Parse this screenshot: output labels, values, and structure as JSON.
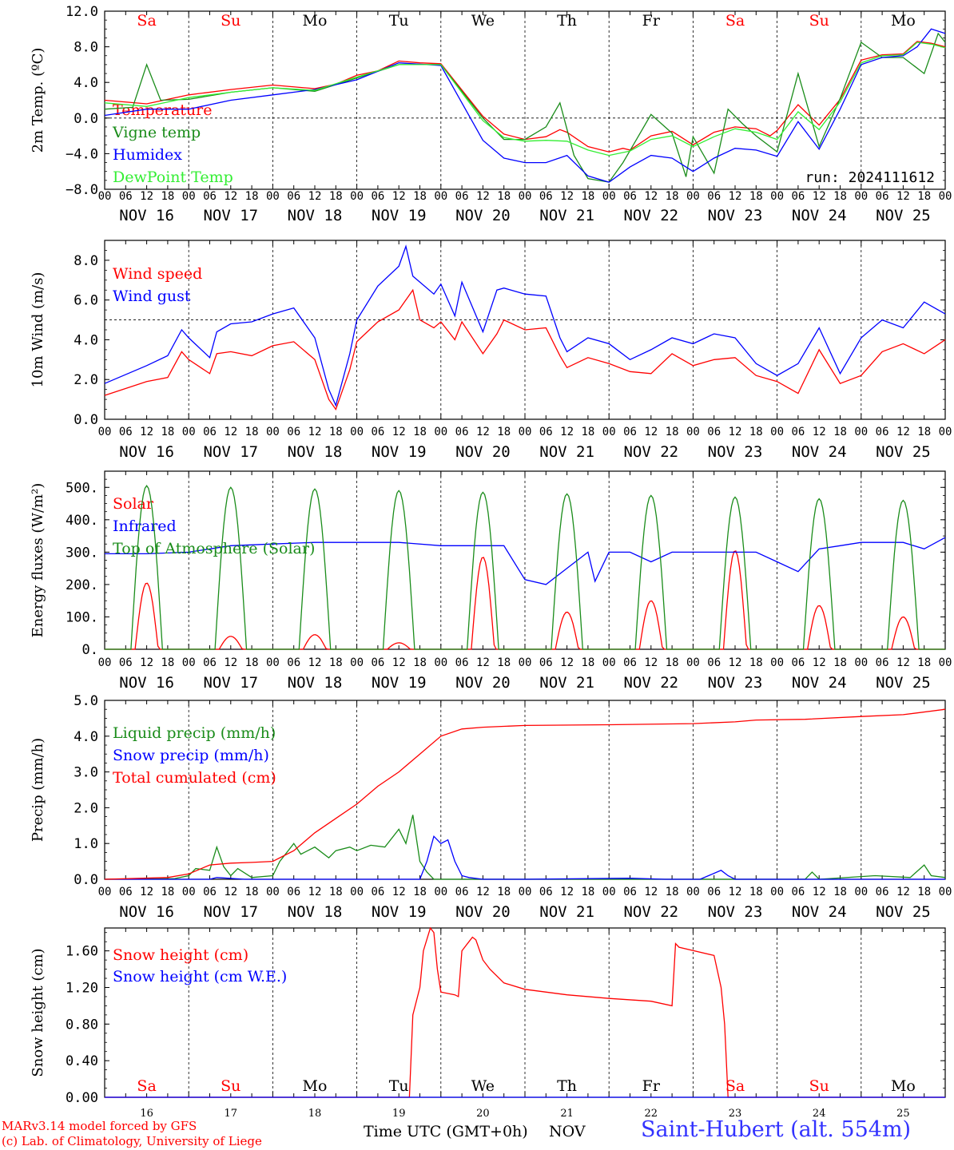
{
  "footer": {
    "model": "MARv3.14 model forced by GFS",
    "credit": "(c) Lab. of Climatology, University of Liege",
    "xaxis_title": "Time UTC (GMT+0h)",
    "xaxis_unit": "NOV",
    "station": "Saint-Hubert (alt. 554m)"
  },
  "colors": {
    "red": "#ff0000",
    "green": "#1a8c1a",
    "blue": "#0000ff",
    "lightgreen": "#33ee33"
  },
  "days": {
    "weekday_labels": [
      "Sa",
      "Su",
      "Mo",
      "Tu",
      "We",
      "Th",
      "Fr",
      "Sa",
      "Su",
      "Mo"
    ],
    "weekday_colors": [
      "red",
      "red",
      "black",
      "black",
      "black",
      "black",
      "black",
      "red",
      "red",
      "black"
    ],
    "date_labels": [
      "NOV 16",
      "NOV 17",
      "NOV 18",
      "NOV 19",
      "NOV 20",
      "NOV 21",
      "NOV 22",
      "NOV 23",
      "NOV 24",
      "NOV 25"
    ],
    "bottom_day_numbers": [
      "16",
      "17",
      "18",
      "19",
      "20",
      "21",
      "22",
      "23",
      "24",
      "25"
    ],
    "hour_ticks": [
      "00",
      "06",
      "12",
      "18"
    ],
    "final_tick": "00"
  },
  "chart_data": [
    {
      "type": "line",
      "id": "temperature",
      "ylabel": "2m Temp. (ºC)",
      "ylim": [
        -8,
        12
      ],
      "yticks": [
        "−8.0",
        "−4.0",
        "0.0",
        "4.0",
        "8.0",
        "12.0"
      ],
      "ytick_values": [
        -8,
        -4,
        0,
        4,
        8,
        12
      ],
      "hline": 0,
      "annotation": "run: 2024111612",
      "x_unit": "hours since 2024-11-16 00 UTC",
      "xlim": [
        0,
        240
      ],
      "series": [
        {
          "name": "Temperature",
          "color": "red",
          "x": [
            0,
            12,
            24,
            36,
            48,
            60,
            66,
            72,
            78,
            84,
            90,
            96,
            108,
            114,
            120,
            126,
            130,
            132,
            138,
            144,
            148,
            150,
            156,
            162,
            168,
            174,
            180,
            186,
            190,
            192,
            198,
            204,
            210,
            216,
            222,
            228,
            232,
            236,
            240
          ],
          "y": [
            2.0,
            1.6,
            2.6,
            3.2,
            3.7,
            3.3,
            3.8,
            4.8,
            5.3,
            6.4,
            6.2,
            6.1,
            0.2,
            -1.8,
            -2.4,
            -2.1,
            -1.3,
            -1.6,
            -3.2,
            -3.8,
            -3.4,
            -3.6,
            -2.0,
            -1.5,
            -3.0,
            -1.6,
            -1.0,
            -1.2,
            -2.0,
            -1.4,
            1.5,
            -0.8,
            2.1,
            6.5,
            7.1,
            7.2,
            8.6,
            8.4,
            8.0
          ]
        },
        {
          "name": "Vigne temp",
          "color": "green",
          "x": [
            0,
            8,
            12,
            16,
            24,
            36,
            48,
            60,
            72,
            84,
            96,
            108,
            114,
            120,
            126,
            130,
            134,
            138,
            144,
            148,
            152,
            156,
            162,
            166,
            168,
            174,
            178,
            182,
            186,
            192,
            198,
            204,
            210,
            216,
            222,
            228,
            234,
            238,
            240
          ],
          "y": [
            1.0,
            1.2,
            6.0,
            2.0,
            2.1,
            2.9,
            3.4,
            3.0,
            4.5,
            6.0,
            6.0,
            0.0,
            -2.4,
            -2.4,
            -1.0,
            1.7,
            -4.2,
            -6.8,
            -7.2,
            -5.0,
            -2.3,
            0.4,
            -1.7,
            -6.6,
            -2.1,
            -6.2,
            1.0,
            -0.6,
            -2.0,
            -3.8,
            5.0,
            -3.2,
            2.2,
            8.5,
            6.8,
            6.8,
            5.0,
            9.5,
            8.5
          ]
        },
        {
          "name": "Humidex",
          "color": "blue",
          "x": [
            0,
            12,
            24,
            36,
            48,
            60,
            72,
            84,
            96,
            108,
            114,
            120,
            126,
            132,
            138,
            144,
            150,
            156,
            162,
            168,
            174,
            180,
            186,
            192,
            198,
            204,
            210,
            216,
            222,
            228,
            232,
            236,
            240
          ],
          "y": [
            0.3,
            1.0,
            1.0,
            2.0,
            2.6,
            3.2,
            4.3,
            6.2,
            5.9,
            -2.5,
            -4.5,
            -5.0,
            -5.0,
            -4.2,
            -6.5,
            -7.2,
            -5.5,
            -4.2,
            -4.5,
            -6.0,
            -4.5,
            -3.4,
            -3.6,
            -4.3,
            -0.4,
            -3.5,
            1.0,
            6.0,
            6.8,
            7.0,
            8.0,
            10.0,
            9.5
          ]
        },
        {
          "name": "DewPoint Temp",
          "color": "lightgreen",
          "x": [
            0,
            12,
            24,
            36,
            48,
            60,
            72,
            84,
            96,
            108,
            114,
            120,
            126,
            132,
            138,
            144,
            150,
            156,
            162,
            168,
            174,
            180,
            186,
            192,
            198,
            204,
            210,
            216,
            222,
            228,
            232,
            236,
            240
          ],
          "y": [
            1.7,
            1.3,
            2.3,
            2.9,
            3.4,
            3.1,
            4.6,
            6.0,
            6.0,
            -0.3,
            -2.2,
            -2.6,
            -2.5,
            -2.6,
            -3.6,
            -4.2,
            -3.7,
            -2.4,
            -2.0,
            -3.2,
            -2.1,
            -1.2,
            -1.6,
            -2.4,
            0.7,
            -1.3,
            1.8,
            6.2,
            7.0,
            7.1,
            8.5,
            8.3,
            7.9
          ]
        }
      ]
    },
    {
      "type": "line",
      "id": "wind",
      "ylabel": "10m Wind (m/s)",
      "ylim": [
        0,
        9
      ],
      "yticks": [
        "0.0",
        "2.0",
        "4.0",
        "6.0",
        "8.0"
      ],
      "ytick_values": [
        0,
        2,
        4,
        6,
        8
      ],
      "hline": 5,
      "x_unit": "hours since 2024-11-16 00 UTC",
      "xlim": [
        0,
        240
      ],
      "series": [
        {
          "name": "Wind speed",
          "color": "red",
          "x": [
            0,
            12,
            18,
            22,
            24,
            30,
            32,
            36,
            42,
            48,
            54,
            60,
            64,
            66,
            70,
            72,
            78,
            84,
            88,
            90,
            94,
            96,
            100,
            102,
            108,
            112,
            114,
            120,
            126,
            130,
            132,
            138,
            144,
            150,
            156,
            162,
            168,
            174,
            180,
            186,
            192,
            198,
            204,
            210,
            216,
            222,
            228,
            234,
            240
          ],
          "y": [
            1.2,
            1.9,
            2.1,
            3.4,
            3.0,
            2.3,
            3.3,
            3.4,
            3.2,
            3.7,
            3.9,
            3.0,
            1.0,
            0.5,
            2.5,
            3.9,
            4.9,
            5.5,
            6.5,
            5.0,
            4.6,
            4.9,
            4.0,
            4.9,
            3.3,
            4.3,
            5.0,
            4.5,
            4.6,
            3.2,
            2.6,
            3.1,
            2.8,
            2.4,
            2.3,
            3.3,
            2.7,
            3.0,
            3.1,
            2.2,
            1.9,
            1.3,
            3.5,
            1.8,
            2.2,
            3.4,
            3.8,
            3.3,
            4.0
          ]
        },
        {
          "name": "Wind gust",
          "color": "blue",
          "x": [
            0,
            12,
            18,
            22,
            24,
            30,
            32,
            36,
            42,
            48,
            54,
            60,
            64,
            66,
            70,
            72,
            78,
            84,
            86,
            88,
            90,
            94,
            96,
            100,
            102,
            108,
            112,
            114,
            120,
            126,
            130,
            132,
            138,
            144,
            150,
            156,
            162,
            168,
            174,
            180,
            186,
            192,
            198,
            204,
            210,
            216,
            222,
            228,
            234,
            240
          ],
          "y": [
            1.8,
            2.7,
            3.2,
            4.5,
            4.1,
            3.1,
            4.4,
            4.8,
            4.9,
            5.3,
            5.6,
            4.1,
            1.5,
            0.7,
            3.3,
            5.0,
            6.7,
            7.7,
            8.7,
            7.2,
            6.9,
            6.3,
            6.8,
            5.2,
            6.9,
            4.4,
            6.5,
            6.6,
            6.3,
            6.2,
            4.1,
            3.4,
            4.1,
            3.8,
            3.0,
            3.5,
            4.1,
            3.8,
            4.3,
            4.1,
            2.8,
            2.2,
            2.8,
            4.6,
            2.3,
            4.1,
            5.0,
            4.6,
            5.9,
            5.3
          ]
        }
      ]
    },
    {
      "type": "line",
      "id": "energy",
      "ylabel": "Energy fluxes (W/m²)",
      "ylim": [
        0,
        550
      ],
      "yticks": [
        "0.",
        "100.",
        "200.",
        "300.",
        "400.",
        "500."
      ],
      "ytick_values": [
        0,
        100,
        200,
        300,
        400,
        500
      ],
      "x_unit": "hours since 2024-11-16 00 UTC",
      "xlim": [
        0,
        240
      ],
      "series": [
        {
          "name": "Solar",
          "color": "red",
          "peaks": [
            205,
            40,
            45,
            20,
            285,
            115,
            150,
            305,
            135,
            100
          ],
          "peak_hour": 12
        },
        {
          "name": "Infrared",
          "color": "blue",
          "x": [
            0,
            12,
            24,
            36,
            48,
            60,
            72,
            84,
            96,
            108,
            114,
            120,
            126,
            132,
            138,
            140,
            144,
            150,
            156,
            162,
            168,
            174,
            180,
            186,
            192,
            198,
            204,
            210,
            216,
            222,
            228,
            234,
            240
          ],
          "y": [
            295,
            295,
            300,
            320,
            325,
            330,
            330,
            330,
            320,
            320,
            320,
            215,
            200,
            250,
            300,
            210,
            300,
            300,
            270,
            300,
            300,
            300,
            300,
            300,
            270,
            240,
            310,
            320,
            330,
            330,
            330,
            310,
            345
          ]
        },
        {
          "name": "Top of Atmosphere (Solar)",
          "color": "green",
          "peaks": [
            505,
            500,
            495,
            490,
            485,
            480,
            475,
            470,
            465,
            460
          ],
          "peak_hour": 12
        }
      ]
    },
    {
      "type": "line",
      "id": "precip",
      "ylabel": "Precip (mm/h)",
      "ylim": [
        0,
        5
      ],
      "yticks": [
        "0.0",
        "1.0",
        "2.0",
        "3.0",
        "4.0",
        "5.0"
      ],
      "ytick_values": [
        0,
        1,
        2,
        3,
        4,
        5
      ],
      "x_unit": "hours since 2024-11-16 00 UTC",
      "xlim": [
        0,
        240
      ],
      "series": [
        {
          "name": "Liquid precip (mm/h)",
          "color": "green",
          "x": [
            0,
            20,
            24,
            26,
            30,
            32,
            34,
            36,
            38,
            42,
            48,
            50,
            54,
            56,
            60,
            64,
            66,
            70,
            72,
            76,
            80,
            84,
            86,
            88,
            90,
            92,
            94,
            96,
            98,
            100,
            102,
            108,
            120,
            160,
            180,
            200,
            202,
            204,
            220,
            230,
            234,
            236,
            240
          ],
          "y": [
            0,
            0.02,
            0.1,
            0.3,
            0.25,
            0.9,
            0.35,
            0.1,
            0.3,
            0.05,
            0.1,
            0.5,
            1.0,
            0.7,
            0.9,
            0.6,
            0.8,
            0.9,
            0.8,
            0.95,
            0.9,
            1.4,
            1.0,
            1.8,
            0.5,
            0.2,
            0,
            0,
            0,
            0,
            0,
            0,
            0,
            0,
            0,
            0,
            0.2,
            0,
            0.1,
            0.05,
            0.4,
            0.1,
            0.05
          ]
        },
        {
          "name": "Snow precip (mm/h)",
          "color": "blue",
          "x": [
            0,
            30,
            32,
            40,
            60,
            80,
            90,
            92,
            94,
            96,
            98,
            100,
            102,
            104,
            108,
            120,
            150,
            160,
            170,
            176,
            178,
            180,
            200,
            240
          ],
          "y": [
            0,
            0,
            0.05,
            0,
            0,
            0,
            0,
            0.5,
            1.2,
            1.0,
            1.1,
            0.5,
            0.1,
            0.05,
            0,
            0,
            0.03,
            0,
            0,
            0.25,
            0.1,
            0,
            0,
            0
          ]
        },
        {
          "name": "Total cumulated (cm)",
          "color": "red",
          "x": [
            0,
            18,
            24,
            30,
            36,
            42,
            48,
            54,
            60,
            66,
            72,
            78,
            84,
            90,
            96,
            102,
            108,
            120,
            144,
            168,
            180,
            186,
            200,
            216,
            228,
            240
          ],
          "y": [
            0,
            0.05,
            0.15,
            0.4,
            0.45,
            0.47,
            0.5,
            0.8,
            1.3,
            1.7,
            2.1,
            2.6,
            3.0,
            3.5,
            4.0,
            4.2,
            4.25,
            4.3,
            4.32,
            4.35,
            4.4,
            4.45,
            4.47,
            4.55,
            4.6,
            4.75
          ]
        }
      ]
    },
    {
      "type": "line",
      "id": "snow",
      "ylabel": "Snow height (cm)",
      "ylim": [
        0,
        1.85
      ],
      "yticks": [
        "0.00",
        "0.40",
        "0.80",
        "1.20",
        "1.60"
      ],
      "ytick_values": [
        0,
        0.4,
        0.8,
        1.2,
        1.6
      ],
      "x_unit": "hours since 2024-11-16 00 UTC",
      "xlim": [
        0,
        240
      ],
      "series": [
        {
          "name": "Snow height (cm)",
          "color": "red",
          "x": [
            0,
            87,
            88,
            90,
            91,
            93,
            94,
            95,
            96,
            100,
            101,
            102,
            103,
            104,
            105,
            106,
            108,
            110,
            114,
            120,
            132,
            144,
            156,
            162,
            163,
            164,
            174,
            176,
            177,
            178,
            240
          ],
          "y": [
            0,
            0,
            0.9,
            1.2,
            1.6,
            1.85,
            1.8,
            1.4,
            1.15,
            1.12,
            1.1,
            1.6,
            1.65,
            1.7,
            1.75,
            1.72,
            1.5,
            1.4,
            1.25,
            1.18,
            1.12,
            1.08,
            1.05,
            1.0,
            1.68,
            1.64,
            1.55,
            1.2,
            0.8,
            0,
            0
          ]
        },
        {
          "name": "Snow height (cm W.E.)",
          "color": "blue",
          "x": [
            0,
            240
          ],
          "y": [
            0,
            0
          ]
        }
      ]
    }
  ]
}
